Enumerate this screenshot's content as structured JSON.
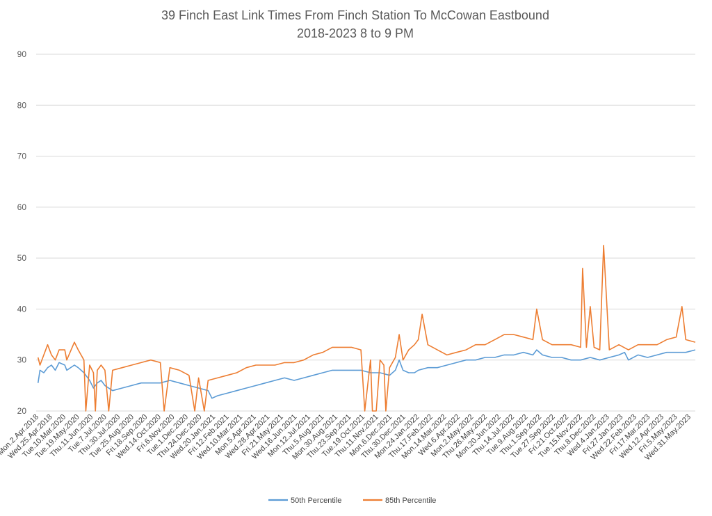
{
  "chart_data": {
    "type": "line",
    "title": "39 Finch East Link Times From Finch Station To McCowan Eastbound",
    "subtitle": "2018-2023 8 to 9 PM",
    "xlabel": "",
    "ylabel": "",
    "ylim": [
      20,
      90
    ],
    "yticks": [
      20,
      30,
      40,
      50,
      60,
      70,
      80,
      90
    ],
    "grid": true,
    "legend_position": "bottom",
    "x_tick_labels": [
      "Mon.2.Apr.2018",
      "Wed.25.Apr.2018",
      "Tue.10.Mar.2020",
      "Tue.19.May.2020",
      "Thu.11.Jun.2020",
      "Tue.7.Jul.2020",
      "Thu.30.Jul.2020",
      "Tue.25.Aug.2020",
      "Fri.18.Sep.2020",
      "Wed.14.Oct.2020",
      "Fri.6.Nov.2020",
      "Tue.1.Dec.2020",
      "Thu.24.Dec.2020",
      "Wed.20.Jan.2021",
      "Fri.12.Feb.2021",
      "Wed.10.Mar.2021",
      "Mon.5.Apr.2021",
      "Wed.28.Apr.2021",
      "Fri.21.May.2021",
      "Wed.16.Jun.2021",
      "Mon.12.Jul.2021",
      "Thu.5.Aug.2021",
      "Mon.30.Aug.2021",
      "Thu.23.Sep.2021",
      "Tue.19.Oct.2021",
      "Thu.11.Nov.2021",
      "Mon.6.Dec.2021",
      "Thu.30.Dec.2021",
      "Mon.24.Jan.2022",
      "Thu.17.Feb.2022",
      "Mon.14.Mar.2022",
      "Wed.6.Apr.2022",
      "Mon.2.May.2022",
      "Thu.26.May.2022",
      "Mon.20.Jun.2022",
      "Thu.14.Jul.2022",
      "Tue.9.Aug.2022",
      "Thu.1.Sep.2022",
      "Tue.27.Sep.2022",
      "Fri.21.Oct.2022",
      "Tue.15.Nov.2022",
      "Thu.8.Dec.2022",
      "Wed.4.Jan.2023",
      "Fri.27.Jan.2023",
      "Wed.22.Feb.2023",
      "Fri.17.Mar.2023",
      "Wed.12.Apr.2023",
      "Fri.5.May.2023",
      "Wed.31.May.2023"
    ],
    "series": [
      {
        "name": "50th Percentile",
        "color": "#5B9BD5",
        "points": [
          [
            1,
            25.5
          ],
          [
            2,
            28
          ],
          [
            4,
            27.5
          ],
          [
            6,
            28.5
          ],
          [
            8,
            29
          ],
          [
            10,
            28
          ],
          [
            12,
            29.5
          ],
          [
            15,
            29
          ],
          [
            16,
            28
          ],
          [
            20,
            29
          ],
          [
            22,
            28.5
          ],
          [
            25,
            27.5
          ],
          [
            28,
            26
          ],
          [
            30,
            24.5
          ],
          [
            32,
            25.5
          ],
          [
            34,
            26
          ],
          [
            36,
            25
          ],
          [
            40,
            24
          ],
          [
            45,
            24.5
          ],
          [
            50,
            25
          ],
          [
            55,
            25.5
          ],
          [
            60,
            25.5
          ],
          [
            65,
            25.5
          ],
          [
            70,
            26
          ],
          [
            75,
            25.5
          ],
          [
            80,
            25
          ],
          [
            85,
            24.5
          ],
          [
            90,
            24
          ],
          [
            92,
            22.5
          ],
          [
            95,
            23
          ],
          [
            100,
            23.5
          ],
          [
            105,
            24
          ],
          [
            110,
            24.5
          ],
          [
            115,
            25
          ],
          [
            120,
            25.5
          ],
          [
            125,
            26
          ],
          [
            130,
            26.5
          ],
          [
            135,
            26
          ],
          [
            140,
            26.5
          ],
          [
            145,
            27
          ],
          [
            150,
            27.5
          ],
          [
            155,
            28
          ],
          [
            160,
            28
          ],
          [
            165,
            28
          ],
          [
            170,
            28
          ],
          [
            175,
            27.5
          ],
          [
            180,
            27.5
          ],
          [
            185,
            27
          ],
          [
            188,
            28
          ],
          [
            190,
            30
          ],
          [
            192,
            28
          ],
          [
            195,
            27.5
          ],
          [
            198,
            27.5
          ],
          [
            200,
            28
          ],
          [
            205,
            28.5
          ],
          [
            210,
            28.5
          ],
          [
            215,
            29
          ],
          [
            220,
            29.5
          ],
          [
            225,
            30
          ],
          [
            230,
            30
          ],
          [
            235,
            30.5
          ],
          [
            240,
            30.5
          ],
          [
            245,
            31
          ],
          [
            250,
            31
          ],
          [
            255,
            31.5
          ],
          [
            260,
            31
          ],
          [
            262,
            32
          ],
          [
            265,
            31
          ],
          [
            270,
            30.5
          ],
          [
            275,
            30.5
          ],
          [
            280,
            30
          ],
          [
            285,
            30
          ],
          [
            290,
            30.5
          ],
          [
            295,
            30
          ],
          [
            300,
            30.5
          ],
          [
            305,
            31
          ],
          [
            308,
            31.5
          ],
          [
            310,
            30
          ],
          [
            315,
            31
          ],
          [
            320,
            30.5
          ],
          [
            325,
            31
          ],
          [
            330,
            31.5
          ],
          [
            335,
            31.5
          ],
          [
            340,
            31.5
          ],
          [
            345,
            32
          ]
        ]
      },
      {
        "name": "85th Percentile",
        "color": "#ED7D31",
        "points": [
          [
            1,
            30.5
          ],
          [
            2,
            29
          ],
          [
            4,
            31
          ],
          [
            6,
            33
          ],
          [
            8,
            31
          ],
          [
            10,
            30
          ],
          [
            12,
            32
          ],
          [
            15,
            32
          ],
          [
            16,
            30
          ],
          [
            20,
            33.5
          ],
          [
            22,
            32
          ],
          [
            25,
            30
          ],
          [
            26,
            20
          ],
          [
            28,
            29
          ],
          [
            30,
            27.5
          ],
          [
            31,
            20
          ],
          [
            32,
            28
          ],
          [
            34,
            29
          ],
          [
            36,
            28
          ],
          [
            38,
            20
          ],
          [
            40,
            28
          ],
          [
            45,
            28.5
          ],
          [
            50,
            29
          ],
          [
            55,
            29.5
          ],
          [
            60,
            30
          ],
          [
            65,
            29.5
          ],
          [
            67,
            20
          ],
          [
            70,
            28.5
          ],
          [
            75,
            28
          ],
          [
            80,
            27
          ],
          [
            83,
            20
          ],
          [
            85,
            26.5
          ],
          [
            88,
            20
          ],
          [
            90,
            26
          ],
          [
            95,
            26.5
          ],
          [
            100,
            27
          ],
          [
            105,
            27.5
          ],
          [
            110,
            28.5
          ],
          [
            115,
            29
          ],
          [
            120,
            29
          ],
          [
            125,
            29
          ],
          [
            130,
            29.5
          ],
          [
            135,
            29.5
          ],
          [
            140,
            30
          ],
          [
            145,
            31
          ],
          [
            150,
            31.5
          ],
          [
            155,
            32.5
          ],
          [
            160,
            32.5
          ],
          [
            165,
            32.5
          ],
          [
            170,
            32
          ],
          [
            172,
            20
          ],
          [
            175,
            30
          ],
          [
            176,
            20
          ],
          [
            178,
            20
          ],
          [
            180,
            30
          ],
          [
            182,
            29
          ],
          [
            183,
            20
          ],
          [
            185,
            28.5
          ],
          [
            188,
            30.5
          ],
          [
            190,
            35
          ],
          [
            192,
            30
          ],
          [
            195,
            32
          ],
          [
            198,
            33
          ],
          [
            200,
            34
          ],
          [
            202,
            39
          ],
          [
            205,
            33
          ],
          [
            210,
            32
          ],
          [
            215,
            31
          ],
          [
            220,
            31.5
          ],
          [
            225,
            32
          ],
          [
            230,
            33
          ],
          [
            235,
            33
          ],
          [
            240,
            34
          ],
          [
            245,
            35
          ],
          [
            250,
            35
          ],
          [
            255,
            34.5
          ],
          [
            260,
            34
          ],
          [
            262,
            40
          ],
          [
            265,
            34
          ],
          [
            270,
            33
          ],
          [
            275,
            33
          ],
          [
            280,
            33
          ],
          [
            285,
            32.5
          ],
          [
            286,
            48
          ],
          [
            288,
            32.5
          ],
          [
            290,
            40.5
          ],
          [
            292,
            32.5
          ],
          [
            295,
            32
          ],
          [
            297,
            52.5
          ],
          [
            300,
            32
          ],
          [
            305,
            33
          ],
          [
            310,
            32
          ],
          [
            315,
            33
          ],
          [
            320,
            33
          ],
          [
            325,
            33
          ],
          [
            330,
            34
          ],
          [
            335,
            34.5
          ],
          [
            338,
            40.5
          ],
          [
            340,
            34
          ],
          [
            345,
            33.5
          ]
        ]
      }
    ]
  }
}
